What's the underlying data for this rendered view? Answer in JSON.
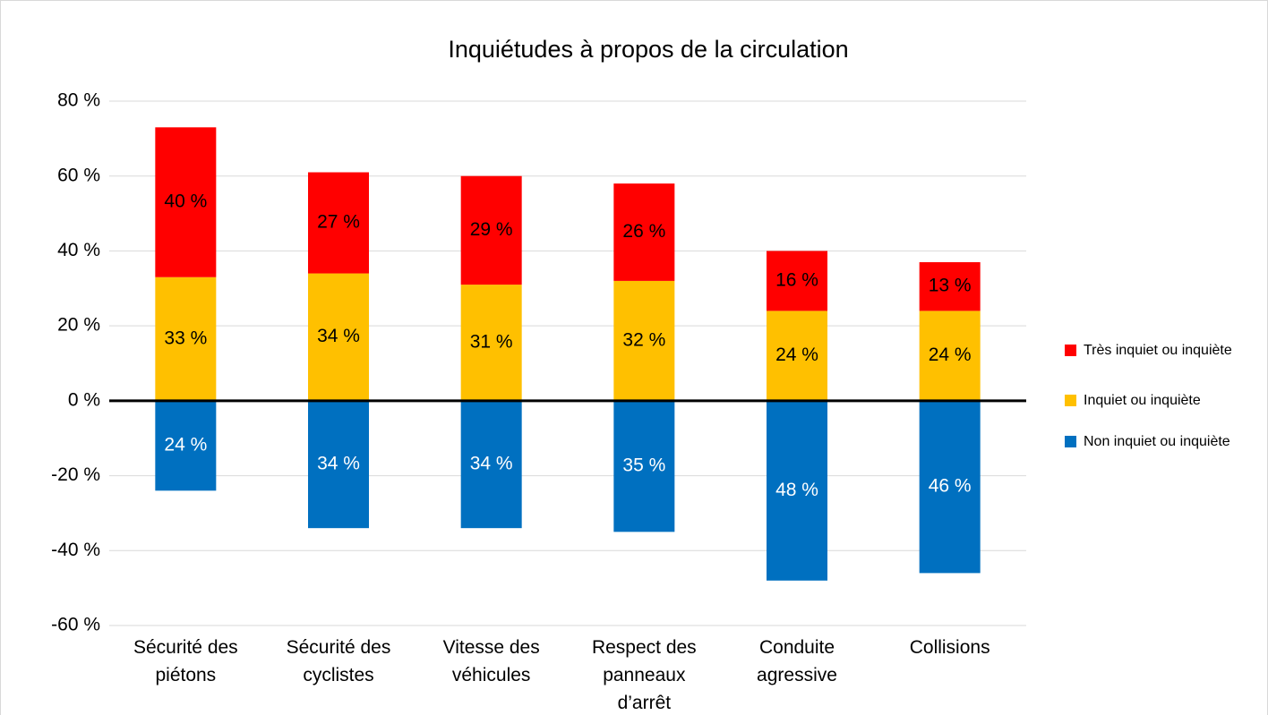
{
  "chart_data": {
    "type": "bar",
    "stacked": true,
    "title": "Inquiétudes à propos de la circulation",
    "categories": [
      "Sécurité des piétons",
      "Sécurité des cyclistes",
      "Vitesse des véhicules",
      "Respect des panneaux d’arrêt",
      "Conduite agressive",
      "Collisions"
    ],
    "series": [
      {
        "name": "Non inquiet ou inquiète",
        "color": "#0070c0",
        "label_color": "#ffffff",
        "values": [
          -24,
          -34,
          -34,
          -35,
          -48,
          -46
        ],
        "value_labels": [
          "24 %",
          "34 %",
          "34 %",
          "35 %",
          "48 %",
          "46 %"
        ]
      },
      {
        "name": "Inquiet ou inquiète",
        "color": "#ffc000",
        "label_color": "#000000",
        "values": [
          33,
          34,
          31,
          32,
          24,
          24
        ],
        "value_labels": [
          "33 %",
          "34 %",
          "31 %",
          "32 %",
          "24 %",
          "24 %"
        ]
      },
      {
        "name": "Très inquiet ou inquiète",
        "color": "#ff0000",
        "label_color": "#000000",
        "values": [
          40,
          27,
          29,
          26,
          16,
          13
        ],
        "value_labels": [
          "40 %",
          "27 %",
          "29 %",
          "26 %",
          "16 %",
          "13 %"
        ]
      }
    ],
    "ylim": [
      -60,
      80
    ],
    "yticks": [
      {
        "value": -60,
        "label": "-60 %"
      },
      {
        "value": -40,
        "label": "-40 %"
      },
      {
        "value": -20,
        "label": "-20 %"
      },
      {
        "value": 0,
        "label": "0 %"
      },
      {
        "value": 20,
        "label": "20 %"
      },
      {
        "value": 40,
        "label": "40 %"
      },
      {
        "value": 60,
        "label": "60 %"
      },
      {
        "value": 80,
        "label": "80 %"
      }
    ],
    "grid": true,
    "legend": "right"
  }
}
